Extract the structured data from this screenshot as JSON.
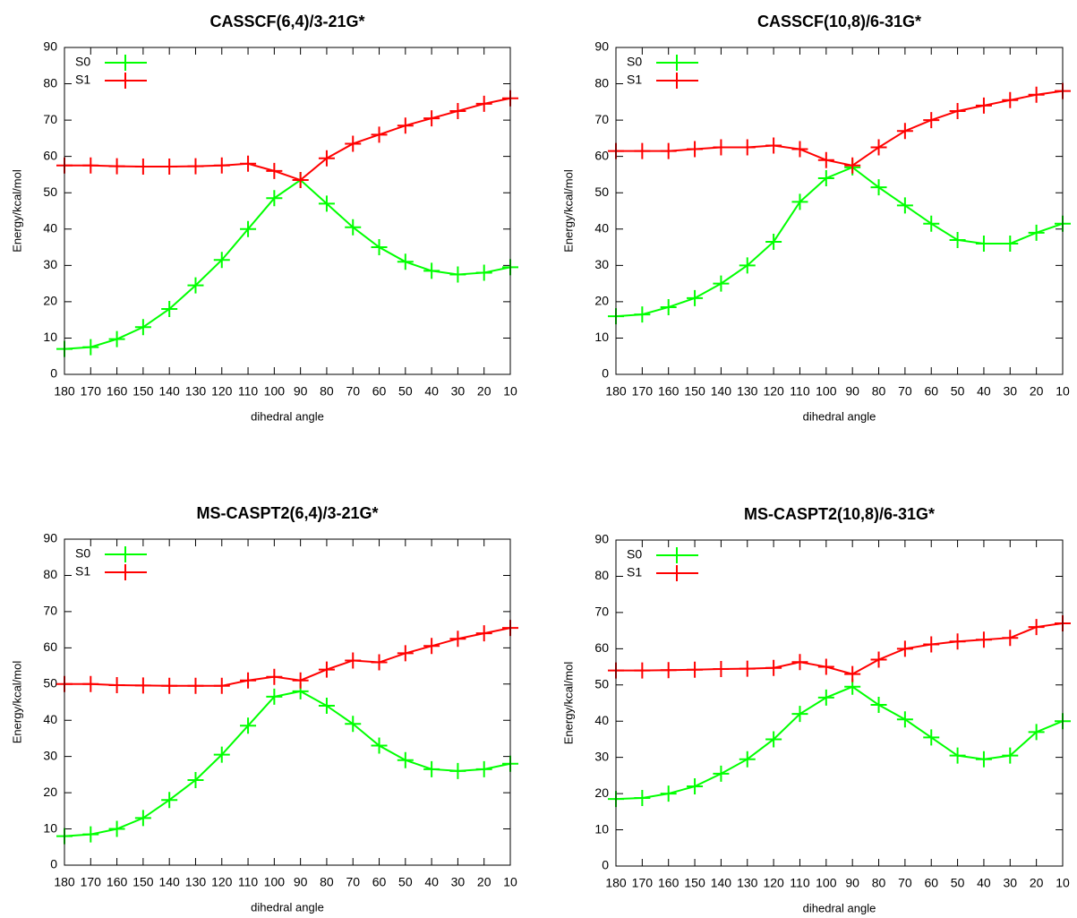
{
  "chart_data": [
    {
      "type": "line",
      "title": "CASSCF(6,4)/3-21G*",
      "x_label": "dihedral angle",
      "y_label": "Energy/kcal/mol",
      "x": [
        180,
        170,
        160,
        150,
        140,
        130,
        120,
        110,
        100,
        90,
        80,
        70,
        60,
        50,
        40,
        30,
        20,
        10
      ],
      "xlim": [
        180,
        10
      ],
      "xticks": [
        180,
        170,
        160,
        150,
        140,
        130,
        120,
        110,
        100,
        90,
        80,
        70,
        60,
        50,
        40,
        30,
        20,
        10
      ],
      "ylim": [
        0,
        90
      ],
      "yticks": [
        0,
        10,
        20,
        30,
        40,
        50,
        60,
        70,
        80,
        90
      ],
      "legend": "upper left",
      "series": [
        {
          "name": "S0",
          "color": "#00ff00",
          "values": [
            7,
            7.5,
            9.7,
            13,
            18,
            24.5,
            31.5,
            40,
            48.5,
            53.5,
            47,
            40.5,
            35,
            31,
            28.5,
            27.5,
            28,
            29.5
          ]
        },
        {
          "name": "S1",
          "color": "#ff0000",
          "values": [
            57.5,
            57.5,
            57.3,
            57.2,
            57.2,
            57.3,
            57.5,
            58,
            56,
            53.5,
            59.5,
            63.5,
            66,
            68.5,
            70.5,
            72.5,
            74.5,
            76
          ]
        }
      ]
    },
    {
      "type": "line",
      "title": "CASSCF(10,8)/6-31G*",
      "x_label": "dihedral angle",
      "y_label": "Energy/kcal/mol",
      "x": [
        180,
        170,
        160,
        150,
        140,
        130,
        120,
        110,
        100,
        90,
        80,
        70,
        60,
        50,
        40,
        30,
        20,
        10
      ],
      "xlim": [
        180,
        10
      ],
      "xticks": [
        180,
        170,
        160,
        150,
        140,
        130,
        120,
        110,
        100,
        90,
        80,
        70,
        60,
        50,
        40,
        30,
        20,
        10
      ],
      "ylim": [
        0,
        90
      ],
      "yticks": [
        0,
        10,
        20,
        30,
        40,
        50,
        60,
        70,
        80,
        90
      ],
      "legend": "upper left",
      "series": [
        {
          "name": "S0",
          "color": "#00ff00",
          "values": [
            16,
            16.5,
            18.5,
            21,
            25,
            30,
            36.5,
            47.5,
            54,
            57,
            51.5,
            46.5,
            41.5,
            37,
            36,
            36,
            39,
            41.5
          ]
        },
        {
          "name": "S1",
          "color": "#ff0000",
          "values": [
            61.5,
            61.5,
            61.5,
            62,
            62.5,
            62.5,
            63,
            62,
            59,
            57.5,
            62.5,
            67,
            70,
            72.5,
            74,
            75.5,
            77,
            78
          ]
        }
      ]
    },
    {
      "type": "line",
      "title": "MS-CASPT2(6,4)/3-21G*",
      "x_label": "dihedral angle",
      "y_label": "Energy/kcal/mol",
      "x": [
        180,
        170,
        160,
        150,
        140,
        130,
        120,
        110,
        100,
        90,
        80,
        70,
        60,
        50,
        40,
        30,
        20,
        10
      ],
      "xlim": [
        180,
        10
      ],
      "xticks": [
        180,
        170,
        160,
        150,
        140,
        130,
        120,
        110,
        100,
        90,
        80,
        70,
        60,
        50,
        40,
        30,
        20,
        10
      ],
      "ylim": [
        0,
        90
      ],
      "yticks": [
        0,
        10,
        20,
        30,
        40,
        50,
        60,
        70,
        80,
        90
      ],
      "legend": "upper left",
      "series": [
        {
          "name": "S0",
          "color": "#00ff00",
          "values": [
            8,
            8.5,
            10,
            13,
            18,
            23.5,
            30.5,
            38.5,
            46.5,
            48,
            44,
            39,
            33,
            29,
            26.5,
            26,
            26.5,
            28
          ]
        },
        {
          "name": "S1",
          "color": "#ff0000",
          "values": [
            50,
            50,
            49.7,
            49.6,
            49.5,
            49.5,
            49.5,
            51,
            52,
            51,
            54,
            56.5,
            56,
            58.5,
            60.5,
            62.5,
            64,
            65.5
          ]
        }
      ]
    },
    {
      "type": "line",
      "title": "MS-CASPT2(10,8)/6-31G*",
      "x_label": "dihedral angle",
      "y_label": "Energy/kcal/mol",
      "x": [
        180,
        170,
        160,
        150,
        140,
        130,
        120,
        110,
        100,
        90,
        80,
        70,
        60,
        50,
        40,
        30,
        20,
        10
      ],
      "xlim": [
        180,
        10
      ],
      "xticks": [
        180,
        170,
        160,
        150,
        140,
        130,
        120,
        110,
        100,
        90,
        80,
        70,
        60,
        50,
        40,
        30,
        20,
        10
      ],
      "ylim": [
        0,
        90
      ],
      "yticks": [
        0,
        10,
        20,
        30,
        40,
        50,
        60,
        70,
        80,
        90
      ],
      "legend": "upper left",
      "series": [
        {
          "name": "S0",
          "color": "#00ff00",
          "values": [
            18.5,
            18.8,
            20,
            22,
            25.5,
            29.5,
            35,
            42,
            46.5,
            49.5,
            44.5,
            40.5,
            35.5,
            30.5,
            29.5,
            30.5,
            37,
            40
          ]
        },
        {
          "name": "S1",
          "color": "#ff0000",
          "values": [
            54,
            54,
            54.1,
            54.2,
            54.4,
            54.5,
            54.7,
            56.3,
            55,
            53,
            57,
            60,
            61.2,
            62,
            62.5,
            63,
            66,
            67
          ]
        }
      ]
    }
  ]
}
